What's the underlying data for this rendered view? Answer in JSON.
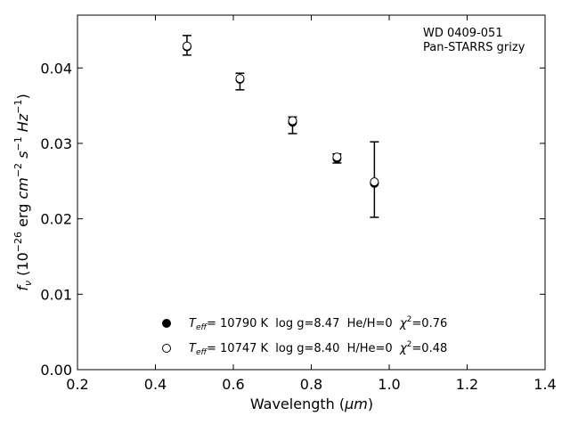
{
  "chart_data": {
    "type": "scatter",
    "title": "",
    "annotation_lines": [
      "WD 0409-051",
      "Pan-STARRS grizy"
    ],
    "xlabel": "Wavelength (μm)",
    "xlabel_parts": {
      "pre": "Wavelength (",
      "sym": "μm",
      "post": ")"
    },
    "ylabel": "f_ν (10^−26 erg cm^−2 s^−1 Hz^−1)",
    "xlim": [
      0.2,
      1.4
    ],
    "ylim": [
      0.0,
      0.047
    ],
    "xticks": [
      0.2,
      0.4,
      0.6,
      0.8,
      1.0,
      1.2,
      1.4
    ],
    "xtick_labels": [
      "0.2",
      "0.4",
      "0.6",
      "0.8",
      "1.0",
      "1.2",
      "1.4"
    ],
    "yticks": [
      0.0,
      0.01,
      0.02,
      0.03,
      0.04
    ],
    "ytick_labels": [
      "0.00",
      "0.01",
      "0.02",
      "0.03",
      "0.04"
    ],
    "grid": false,
    "legend_position": "lower-center",
    "observed": {
      "x": [
        0.481,
        0.617,
        0.752,
        0.866,
        0.962
      ],
      "y": [
        0.043,
        0.0382,
        0.0324,
        0.028,
        0.0252
      ],
      "yerr": [
        0.0013,
        0.0011,
        0.0011,
        0.0006,
        0.005
      ],
      "color": "#000000"
    },
    "series": [
      {
        "name": "T_eff= 10790 K log g=8.47 He/H=0 χ²=0.76",
        "marker": "filled-circle",
        "x": [
          0.481,
          0.617,
          0.752,
          0.866,
          0.962
        ],
        "y": [
          0.0428,
          0.0385,
          0.0328,
          0.028,
          0.0247
        ]
      },
      {
        "name": "T_eff= 10747 K log g=8.40 H/He=0 χ²=0.48",
        "marker": "open-circle",
        "x": [
          0.481,
          0.617,
          0.752,
          0.866,
          0.962
        ],
        "y": [
          0.0429,
          0.0386,
          0.033,
          0.0282,
          0.0249
        ]
      }
    ],
    "legend": [
      {
        "marker": "filled-circle",
        "teff_prefix": "T",
        "teff_sub": "eff",
        "teff_rest": "= 10790 K  log g=8.47  He/H=0  ",
        "chi_sym": "χ",
        "chi_sup": "2",
        "chi_rest": "=0.76"
      },
      {
        "marker": "open-circle",
        "teff_prefix": "T",
        "teff_sub": "eff",
        "teff_rest": "= 10747 K  log g=8.40  H/He=0  ",
        "chi_sym": "χ",
        "chi_sup": "2",
        "chi_rest": "=0.48"
      }
    ]
  }
}
